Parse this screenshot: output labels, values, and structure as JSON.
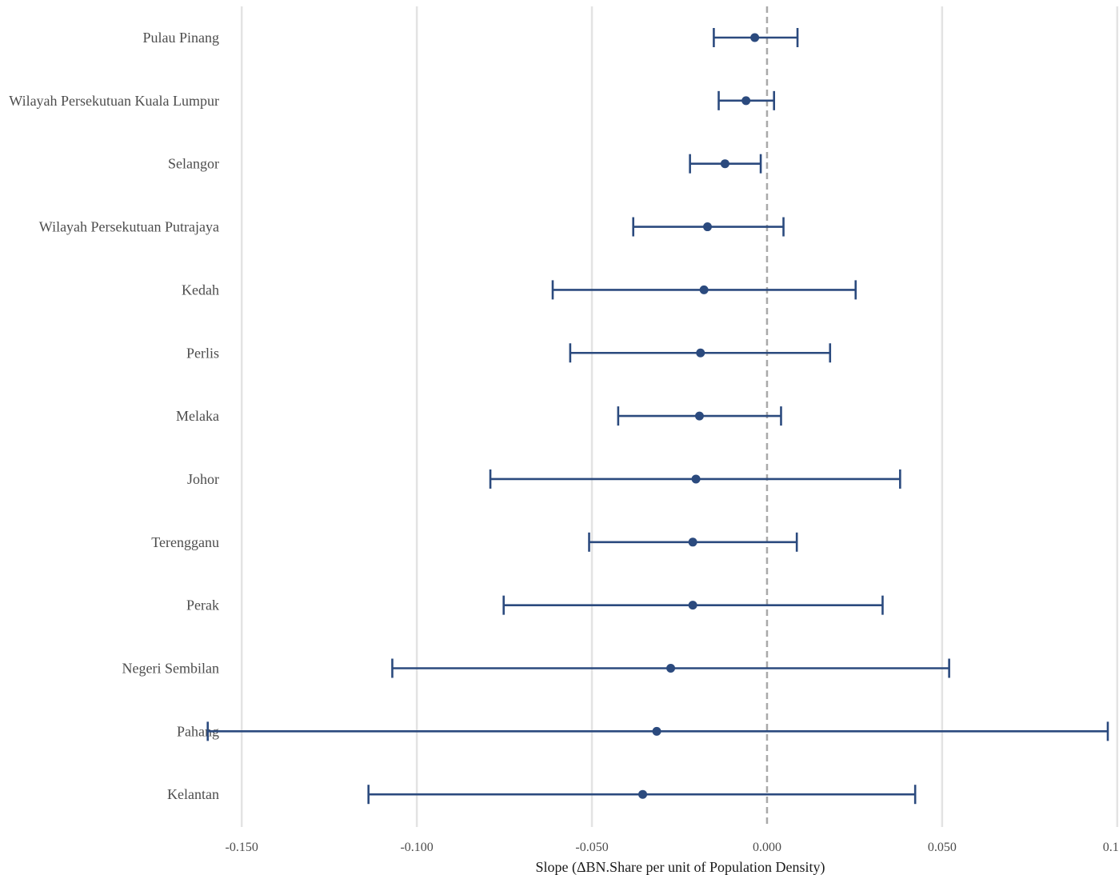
{
  "chart_data": {
    "type": "forest",
    "title": "",
    "xlabel": "Slope (ΔBN.Share per unit of Population Density)",
    "ylabel": "",
    "xlim": [
      -0.1505,
      0.1005
    ],
    "x_ticks": [
      -0.15,
      -0.1,
      -0.05,
      0.0,
      0.05,
      0.1
    ],
    "x_tick_labels": [
      "-0.150",
      "-0.100",
      "-0.050",
      "0.000",
      "0.050",
      "0.100"
    ],
    "reference_line": 0.0,
    "grid": true,
    "series_color": "#2b4a7e",
    "rows": [
      {
        "label": "Pulau Pinang",
        "estimate": -0.0035,
        "lower": -0.0152,
        "upper": 0.0087
      },
      {
        "label": "Wilayah Persekutuan Kuala Lumpur",
        "estimate": -0.006,
        "lower": -0.0138,
        "upper": 0.002
      },
      {
        "label": "Selangor",
        "estimate": -0.012,
        "lower": -0.022,
        "upper": -0.0018
      },
      {
        "label": "Wilayah Persekutuan Putrajaya",
        "estimate": -0.017,
        "lower": -0.0382,
        "upper": 0.0047
      },
      {
        "label": "Kedah",
        "estimate": -0.018,
        "lower": -0.0612,
        "upper": 0.0253
      },
      {
        "label": "Perlis",
        "estimate": -0.019,
        "lower": -0.0562,
        "upper": 0.018
      },
      {
        "label": "Melaka",
        "estimate": -0.0193,
        "lower": -0.0425,
        "upper": 0.004
      },
      {
        "label": "Johor",
        "estimate": -0.0203,
        "lower": -0.079,
        "upper": 0.038
      },
      {
        "label": "Terengganu",
        "estimate": -0.0212,
        "lower": -0.0508,
        "upper": 0.0085
      },
      {
        "label": "Perak",
        "estimate": -0.0212,
        "lower": -0.0752,
        "upper": 0.033
      },
      {
        "label": "Negeri Sembilan",
        "estimate": -0.0275,
        "lower": -0.107,
        "upper": 0.052
      },
      {
        "label": "Pahang",
        "estimate": -0.0315,
        "lower": -0.1597,
        "upper": 0.0973
      },
      {
        "label": "Kelantan",
        "estimate": -0.0355,
        "lower": -0.1138,
        "upper": 0.0423
      }
    ]
  }
}
